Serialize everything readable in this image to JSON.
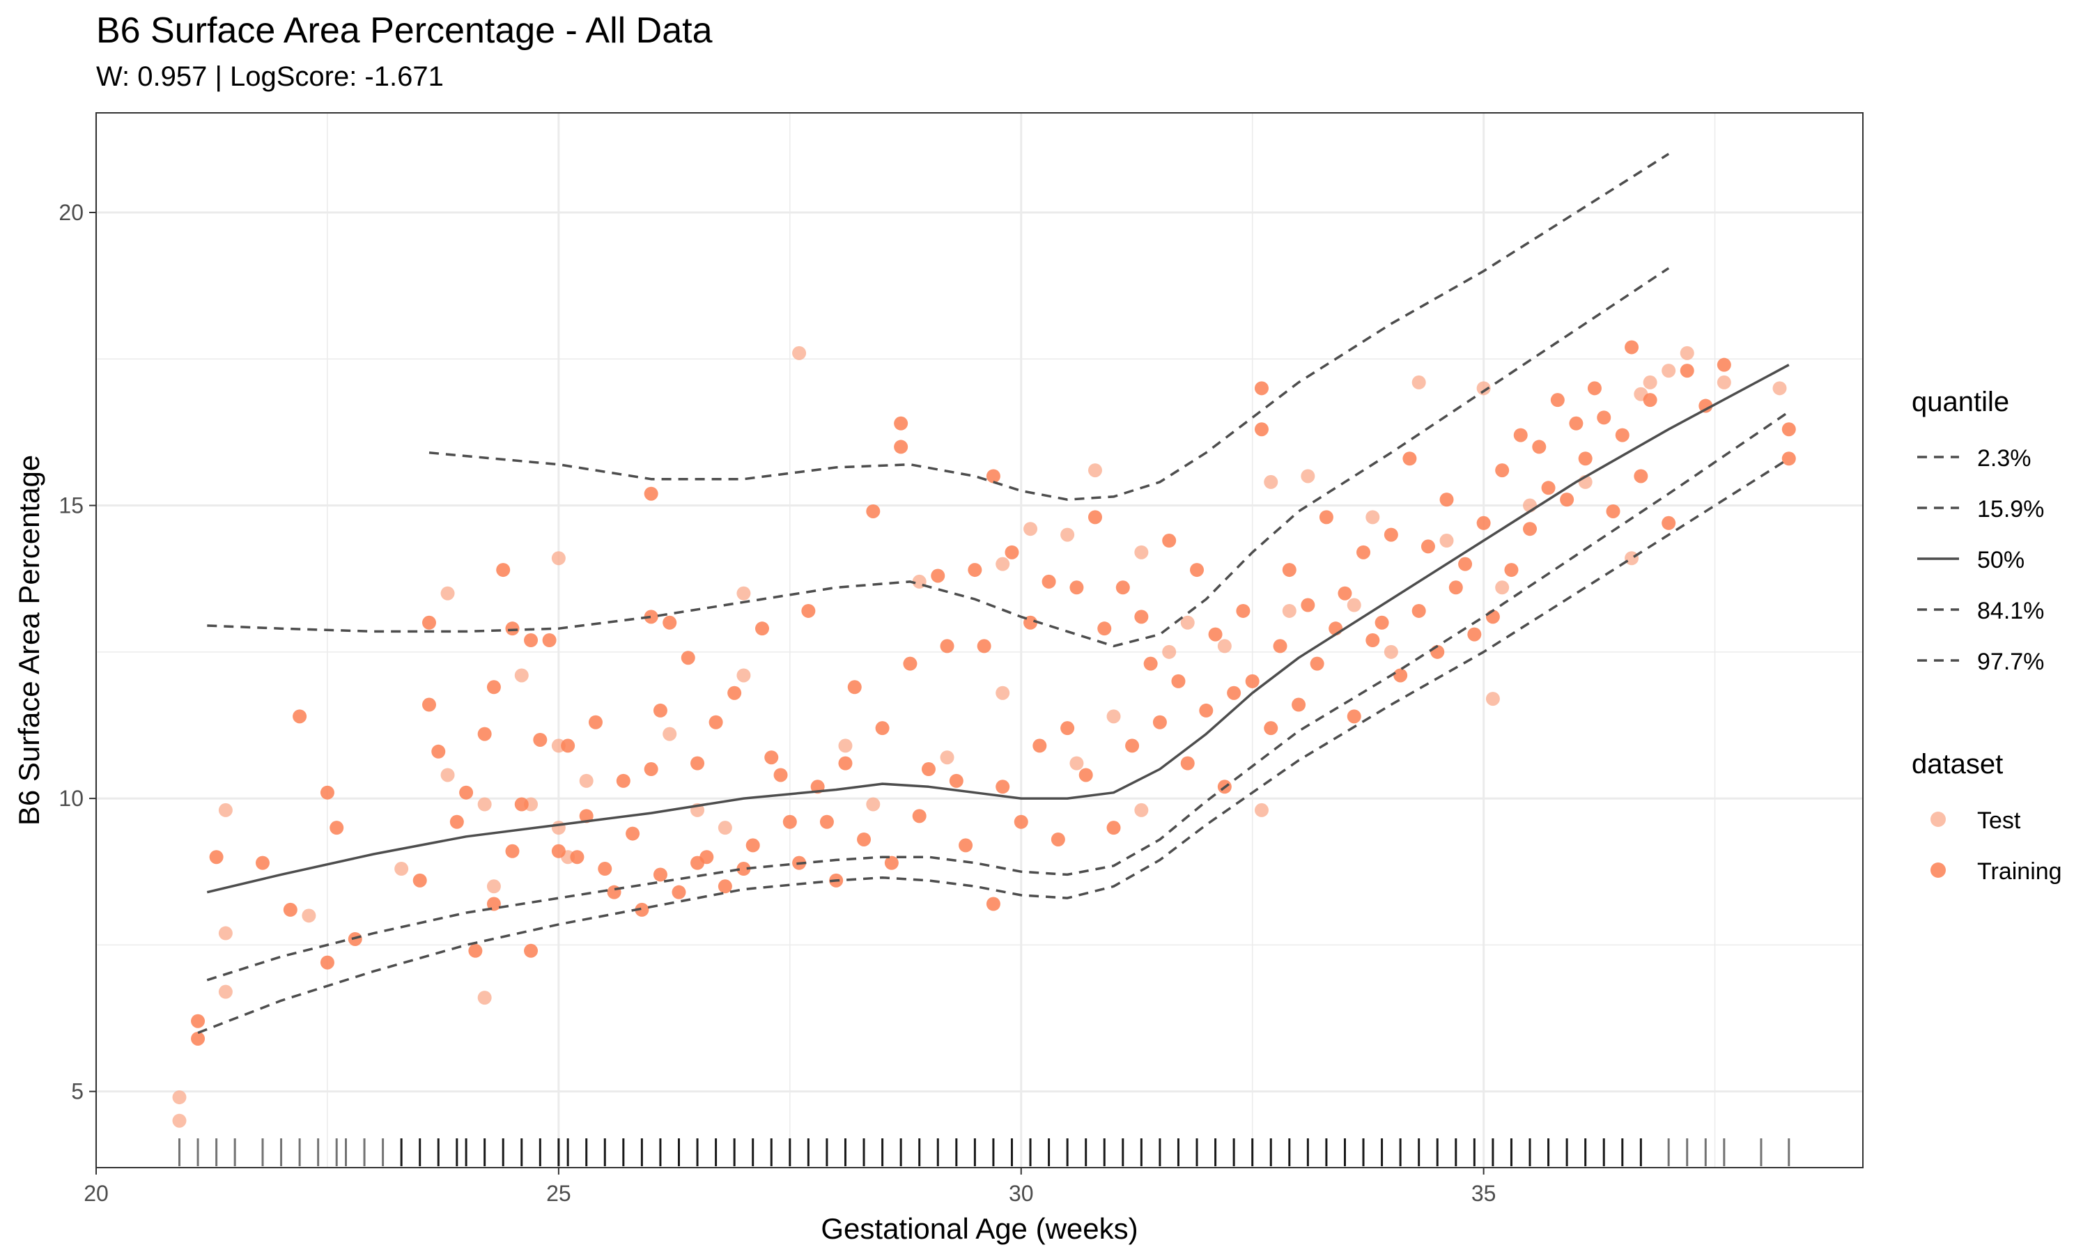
{
  "chart_data": {
    "type": "scatter",
    "title": "B6 Surface Area Percentage - All Data",
    "subtitle": "W: 0.957 | LogScore: -1.671",
    "xlabel": "Gestational Age (weeks)",
    "ylabel": "B6 Surface Area Percentage",
    "xlim": [
      20,
      39.1
    ],
    "ylim": [
      3.7,
      21.7
    ],
    "x_ticks": [
      20,
      25,
      30,
      35
    ],
    "y_ticks": [
      5,
      10,
      15,
      20
    ],
    "grid": true,
    "rug": "x-axis",
    "colors": {
      "test": "#F9A98B",
      "training": "#FB8053",
      "curves": "#4D4D4D",
      "grid": "#EBEBEB",
      "panel_border": "#333333"
    },
    "legend": {
      "placement": "right",
      "quantile_title": "quantile",
      "quantile_items": [
        "2.3%",
        "15.9%",
        "50%",
        "84.1%",
        "97.7%"
      ],
      "dataset_title": "dataset",
      "dataset_items": [
        "Test",
        "Training"
      ]
    },
    "quantile_curves": [
      {
        "name": "97.7%",
        "style": "dashed",
        "x": [
          23.6,
          25,
          26,
          27,
          28,
          28.8,
          29.5,
          30,
          30.5,
          31,
          31.5,
          32,
          32.5,
          33,
          34,
          35,
          36,
          37
        ],
        "y": [
          15.9,
          15.7,
          15.45,
          15.45,
          15.65,
          15.7,
          15.5,
          15.25,
          15.1,
          15.15,
          15.4,
          15.9,
          16.5,
          17.1,
          18.1,
          19.0,
          20.0,
          21.0
        ]
      },
      {
        "name": "84.1%",
        "style": "dashed",
        "x": [
          21.2,
          22,
          23,
          24,
          25,
          26,
          27,
          28,
          28.8,
          29.5,
          30,
          30.5,
          31,
          31.5,
          32,
          32.5,
          33,
          34,
          35,
          36,
          37
        ],
        "y": [
          12.95,
          12.9,
          12.85,
          12.85,
          12.9,
          13.1,
          13.35,
          13.6,
          13.7,
          13.4,
          13.1,
          12.85,
          12.6,
          12.8,
          13.4,
          14.2,
          14.9,
          15.9,
          16.95,
          18.0,
          19.05
        ]
      },
      {
        "name": "50%",
        "style": "solid",
        "x": [
          21.2,
          22,
          23,
          24,
          25,
          26,
          27,
          28,
          28.5,
          29,
          29.5,
          30,
          30.5,
          31,
          31.5,
          32,
          32.5,
          33,
          34,
          35,
          36,
          37,
          38.3
        ],
        "y": [
          8.4,
          8.7,
          9.05,
          9.35,
          9.55,
          9.75,
          10.0,
          10.15,
          10.25,
          10.2,
          10.1,
          10.0,
          10.0,
          10.1,
          10.5,
          11.1,
          11.8,
          12.4,
          13.4,
          14.4,
          15.4,
          16.3,
          17.4
        ]
      },
      {
        "name": "15.9%",
        "style": "dashed",
        "x": [
          21.2,
          22,
          23,
          24,
          25,
          26,
          27,
          28,
          28.5,
          29,
          29.5,
          30,
          30.5,
          31,
          31.5,
          32,
          32.5,
          33,
          34,
          35,
          36,
          37,
          38.3
        ],
        "y": [
          6.9,
          7.3,
          7.7,
          8.05,
          8.3,
          8.55,
          8.8,
          8.95,
          9.0,
          9.0,
          8.9,
          8.75,
          8.7,
          8.85,
          9.3,
          9.95,
          10.55,
          11.15,
          12.1,
          13.1,
          14.15,
          15.2,
          16.6
        ]
      },
      {
        "name": "2.3%",
        "style": "dashed",
        "x": [
          21.1,
          22,
          23,
          24,
          25,
          26,
          27,
          28,
          28.5,
          29,
          29.5,
          30,
          30.5,
          31,
          31.5,
          32,
          32.5,
          33,
          34,
          35,
          36,
          37,
          38.3
        ],
        "y": [
          6.0,
          6.55,
          7.05,
          7.5,
          7.85,
          8.15,
          8.45,
          8.6,
          8.65,
          8.6,
          8.5,
          8.35,
          8.3,
          8.5,
          8.95,
          9.55,
          10.1,
          10.65,
          11.6,
          12.5,
          13.5,
          14.5,
          15.8
        ]
      }
    ],
    "series": [
      {
        "name": "Test",
        "x": [
          20.9,
          20.9,
          21.4,
          21.4,
          21.4,
          22.3,
          23.3,
          23.8,
          23.8,
          24.2,
          24.2,
          24.3,
          24.6,
          24.7,
          25.0,
          25.0,
          25.0,
          25.1,
          25.3,
          26.2,
          26.5,
          26.8,
          27.0,
          27.0,
          27.6,
          28.1,
          28.4,
          28.9,
          29.2,
          29.8,
          29.8,
          30.1,
          30.5,
          30.6,
          30.8,
          31.0,
          31.3,
          31.3,
          31.6,
          31.8,
          32.2,
          32.6,
          32.7,
          32.9,
          33.1,
          33.6,
          33.8,
          34.0,
          34.3,
          34.6,
          35.0,
          35.1,
          35.2,
          35.5,
          36.1,
          36.6,
          36.7,
          36.8,
          37.0,
          37.2,
          37.6,
          38.2
        ],
        "y": [
          4.5,
          4.9,
          6.7,
          7.7,
          9.8,
          8.0,
          8.8,
          10.4,
          13.5,
          6.6,
          9.9,
          8.5,
          12.1,
          9.9,
          14.1,
          10.9,
          9.5,
          9.0,
          10.3,
          11.1,
          9.8,
          9.5,
          13.5,
          12.1,
          17.6,
          10.9,
          9.9,
          13.7,
          10.7,
          11.8,
          14.0,
          14.6,
          14.5,
          10.6,
          15.6,
          11.4,
          9.8,
          14.2,
          12.5,
          13.0,
          12.6,
          9.8,
          15.4,
          13.2,
          15.5,
          13.3,
          14.8,
          12.5,
          17.1,
          14.4,
          17.0,
          11.7,
          13.6,
          15.0,
          15.4,
          14.1,
          16.9,
          17.1,
          17.3,
          17.6,
          17.1,
          17.0
        ]
      },
      {
        "name": "Training",
        "x": [
          21.1,
          21.1,
          21.3,
          21.8,
          22.1,
          22.2,
          22.5,
          22.5,
          22.6,
          22.8,
          23.5,
          23.6,
          23.6,
          23.7,
          23.9,
          24.0,
          24.1,
          24.2,
          24.3,
          24.3,
          24.4,
          24.5,
          24.5,
          24.6,
          24.7,
          24.7,
          24.8,
          24.9,
          25.0,
          25.1,
          25.2,
          25.3,
          25.4,
          25.5,
          25.6,
          25.7,
          25.8,
          25.9,
          26.0,
          26.0,
          26.1,
          26.1,
          26.2,
          26.3,
          26.4,
          26.5,
          26.5,
          26.6,
          26.7,
          26.8,
          26.9,
          27.0,
          27.1,
          27.2,
          27.3,
          27.4,
          27.5,
          27.6,
          27.7,
          27.8,
          27.9,
          28.0,
          28.1,
          28.2,
          28.3,
          28.4,
          28.5,
          28.6,
          28.7,
          28.8,
          28.9,
          29.0,
          29.1,
          29.2,
          29.3,
          29.4,
          29.5,
          29.6,
          29.7,
          29.7,
          29.8,
          29.9,
          30.0,
          30.1,
          30.2,
          30.3,
          30.4,
          30.5,
          30.6,
          30.7,
          30.8,
          30.9,
          31.0,
          31.1,
          31.2,
          31.3,
          31.4,
          31.5,
          31.6,
          31.7,
          31.8,
          31.9,
          32.0,
          32.1,
          32.2,
          32.3,
          32.4,
          32.5,
          32.6,
          32.7,
          32.8,
          32.9,
          33.0,
          33.1,
          33.2,
          33.3,
          33.4,
          33.5,
          33.6,
          33.7,
          33.8,
          33.9,
          34.0,
          34.1,
          34.2,
          34.3,
          34.4,
          34.5,
          34.6,
          34.7,
          34.8,
          34.9,
          35.0,
          35.1,
          35.2,
          35.3,
          35.4,
          35.5,
          35.6,
          35.7,
          35.8,
          35.9,
          36.0,
          36.1,
          36.2,
          36.3,
          36.4,
          36.5,
          36.6,
          36.7,
          36.8,
          37.0,
          37.2,
          37.4,
          37.6,
          38.3,
          38.3,
          32.6,
          28.7,
          26.0
        ],
        "y": [
          6.2,
          5.9,
          9.0,
          8.9,
          8.1,
          11.4,
          7.2,
          10.1,
          9.5,
          7.6,
          8.6,
          11.6,
          13.0,
          10.8,
          9.6,
          10.1,
          7.4,
          11.1,
          8.2,
          11.9,
          13.9,
          9.1,
          12.9,
          9.9,
          12.7,
          7.4,
          11.0,
          12.7,
          9.1,
          10.9,
          9.0,
          9.7,
          11.3,
          8.8,
          8.4,
          10.3,
          9.4,
          8.1,
          10.5,
          13.1,
          8.7,
          11.5,
          13.0,
          8.4,
          12.4,
          10.6,
          8.9,
          9.0,
          11.3,
          8.5,
          11.8,
          8.8,
          9.2,
          12.9,
          10.7,
          10.4,
          9.6,
          8.9,
          13.2,
          10.2,
          9.6,
          8.6,
          10.6,
          11.9,
          9.3,
          14.9,
          11.2,
          8.9,
          16.4,
          12.3,
          9.7,
          10.5,
          13.8,
          12.6,
          10.3,
          9.2,
          13.9,
          12.6,
          8.2,
          15.5,
          10.2,
          14.2,
          9.6,
          13.0,
          10.9,
          13.7,
          9.3,
          11.2,
          13.6,
          10.4,
          14.8,
          12.9,
          9.5,
          13.6,
          10.9,
          13.1,
          12.3,
          11.3,
          14.4,
          12.0,
          10.6,
          13.9,
          11.5,
          12.8,
          10.2,
          11.8,
          13.2,
          12.0,
          16.3,
          11.2,
          12.6,
          13.9,
          11.6,
          13.3,
          12.3,
          14.8,
          12.9,
          13.5,
          11.4,
          14.2,
          12.7,
          13.0,
          14.5,
          12.1,
          15.8,
          13.2,
          14.3,
          12.5,
          15.1,
          13.6,
          14.0,
          12.8,
          14.7,
          13.1,
          15.6,
          13.9,
          16.2,
          14.6,
          16.0,
          15.3,
          16.8,
          15.1,
          16.4,
          15.8,
          17.0,
          16.5,
          14.9,
          16.2,
          17.7,
          15.5,
          16.8,
          14.7,
          17.3,
          16.7,
          17.4,
          15.8,
          16.3,
          17.0,
          16.0,
          15.2
        ]
      }
    ],
    "rug_x": [
      20.9,
      21.1,
      21.3,
      21.5,
      21.8,
      22.0,
      22.2,
      22.4,
      22.6,
      22.7,
      22.9,
      23.1,
      23.3,
      23.5,
      23.7,
      23.9,
      24.0,
      24.2,
      24.4,
      24.6,
      24.8,
      25.0,
      25.1,
      25.3,
      25.5,
      25.7,
      25.9,
      26.1,
      26.3,
      26.5,
      26.7,
      26.9,
      27.1,
      27.3,
      27.5,
      27.7,
      27.9,
      28.1,
      28.3,
      28.5,
      28.7,
      28.9,
      29.1,
      29.3,
      29.5,
      29.7,
      29.9,
      30.1,
      30.3,
      30.5,
      30.7,
      30.9,
      31.1,
      31.3,
      31.5,
      31.7,
      31.9,
      32.1,
      32.3,
      32.5,
      32.7,
      32.9,
      33.1,
      33.3,
      33.5,
      33.7,
      33.9,
      34.1,
      34.3,
      34.5,
      34.7,
      34.9,
      35.1,
      35.3,
      35.5,
      35.7,
      35.9,
      36.1,
      36.3,
      36.5,
      36.7,
      37.0,
      37.2,
      37.4,
      37.6,
      38.0,
      38.3
    ]
  }
}
